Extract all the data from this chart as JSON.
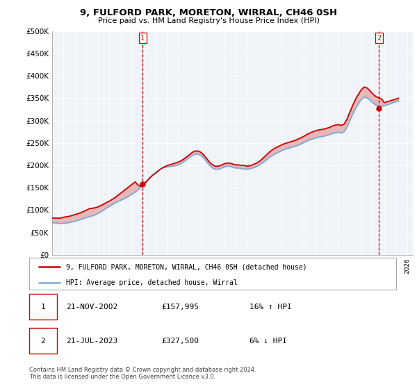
{
  "title": "9, FULFORD PARK, MORETON, WIRRAL, CH46 0SH",
  "subtitle": "Price paid vs. HM Land Registry's House Price Index (HPI)",
  "ylabel_ticks": [
    "£0",
    "£50K",
    "£100K",
    "£150K",
    "£200K",
    "£250K",
    "£300K",
    "£350K",
    "£400K",
    "£450K",
    "£500K"
  ],
  "ylim": [
    0,
    500000
  ],
  "yticks": [
    0,
    50000,
    100000,
    150000,
    200000,
    250000,
    300000,
    350000,
    400000,
    450000,
    500000
  ],
  "xlim_start": 1995.0,
  "xlim_end": 2026.5,
  "point1_x": 2002.896,
  "point1_y": 157995,
  "point2_x": 2023.542,
  "point2_y": 327500,
  "legend_line1": "9, FULFORD PARK, MORETON, WIRRAL, CH46 0SH (detached house)",
  "legend_line2": "HPI: Average price, detached house, Wirral",
  "table_row1": [
    "1",
    "21-NOV-2002",
    "£157,995",
    "16% ↑ HPI"
  ],
  "table_row2": [
    "2",
    "21-JUL-2023",
    "£327,500",
    "6% ↓ HPI"
  ],
  "footer1": "Contains HM Land Registry data © Crown copyright and database right 2024.",
  "footer2": "This data is licensed under the Open Government Licence v3.0.",
  "line_color_red": "#cc0000",
  "line_color_blue": "#7aaddc",
  "bg_color": "#ffffff",
  "plot_bg_color": "#f0f4f8",
  "grid_color": "#ffffff",
  "hpi_years": [
    1995.0,
    1995.25,
    1995.5,
    1995.75,
    1996.0,
    1996.25,
    1996.5,
    1996.75,
    1997.0,
    1997.25,
    1997.5,
    1997.75,
    1998.0,
    1998.25,
    1998.5,
    1998.75,
    1999.0,
    1999.25,
    1999.5,
    1999.75,
    2000.0,
    2000.25,
    2000.5,
    2000.75,
    2001.0,
    2001.25,
    2001.5,
    2001.75,
    2002.0,
    2002.25,
    2002.5,
    2002.75,
    2003.0,
    2003.25,
    2003.5,
    2003.75,
    2004.0,
    2004.25,
    2004.5,
    2004.75,
    2005.0,
    2005.25,
    2005.5,
    2005.75,
    2006.0,
    2006.25,
    2006.5,
    2006.75,
    2007.0,
    2007.25,
    2007.5,
    2007.75,
    2008.0,
    2008.25,
    2008.5,
    2008.75,
    2009.0,
    2009.25,
    2009.5,
    2009.75,
    2010.0,
    2010.25,
    2010.5,
    2010.75,
    2011.0,
    2011.25,
    2011.5,
    2011.75,
    2012.0,
    2012.25,
    2012.5,
    2012.75,
    2013.0,
    2013.25,
    2013.5,
    2013.75,
    2014.0,
    2014.25,
    2014.5,
    2014.75,
    2015.0,
    2015.25,
    2015.5,
    2015.75,
    2016.0,
    2016.25,
    2016.5,
    2016.75,
    2017.0,
    2017.25,
    2017.5,
    2017.75,
    2018.0,
    2018.25,
    2018.5,
    2018.75,
    2019.0,
    2019.25,
    2019.5,
    2019.75,
    2020.0,
    2020.25,
    2020.5,
    2020.75,
    2021.0,
    2021.25,
    2021.5,
    2021.75,
    2022.0,
    2022.25,
    2022.5,
    2022.75,
    2023.0,
    2023.25,
    2023.5,
    2023.75,
    2024.0,
    2024.25,
    2024.5,
    2024.75,
    2025.0,
    2025.25
  ],
  "hpi_values": [
    72000,
    71000,
    70500,
    70000,
    70500,
    71000,
    72000,
    73500,
    75000,
    77000,
    79000,
    81000,
    83000,
    85000,
    87000,
    89000,
    92000,
    96000,
    100000,
    104000,
    108000,
    112000,
    116000,
    119000,
    122000,
    125000,
    128000,
    132000,
    136000,
    140000,
    145000,
    151000,
    158000,
    165000,
    172000,
    178000,
    183000,
    188000,
    192000,
    195000,
    196000,
    197000,
    198000,
    199000,
    201000,
    204000,
    208000,
    213000,
    218000,
    222000,
    225000,
    225000,
    222000,
    216000,
    208000,
    200000,
    194000,
    191000,
    191000,
    193000,
    196000,
    198000,
    198000,
    196000,
    194000,
    194000,
    193000,
    192000,
    191000,
    192000,
    194000,
    196000,
    199000,
    203000,
    208000,
    213000,
    218000,
    222000,
    226000,
    229000,
    232000,
    235000,
    237000,
    239000,
    241000,
    243000,
    245000,
    248000,
    251000,
    254000,
    257000,
    259000,
    261000,
    263000,
    264000,
    265000,
    267000,
    269000,
    271000,
    273000,
    274000,
    272000,
    275000,
    285000,
    300000,
    314000,
    327000,
    338000,
    347000,
    352000,
    351000,
    346000,
    340000,
    335000,
    333000,
    332000,
    333000,
    335000,
    337000,
    340000,
    342000,
    344000
  ],
  "prop_values": [
    82000,
    82000,
    82000,
    82000,
    84000,
    85000,
    86000,
    88000,
    90000,
    92000,
    94000,
    97000,
    100000,
    103000,
    104000,
    105000,
    107000,
    110000,
    113000,
    117000,
    120000,
    124000,
    128000,
    133000,
    138000,
    143000,
    148000,
    153000,
    158000,
    163000,
    156000,
    153000,
    157995,
    164000,
    171000,
    177000,
    182000,
    187000,
    192000,
    196000,
    199000,
    201000,
    203000,
    205000,
    207000,
    210000,
    214000,
    219000,
    224000,
    229000,
    232000,
    232000,
    229000,
    223000,
    215000,
    207000,
    201000,
    198000,
    198000,
    200000,
    203000,
    205000,
    205000,
    203000,
    201000,
    201000,
    200000,
    200000,
    198000,
    199000,
    201000,
    204000,
    207000,
    212000,
    218000,
    224000,
    230000,
    235000,
    239000,
    242000,
    245000,
    248000,
    250000,
    252000,
    254000,
    256000,
    259000,
    262000,
    265000,
    269000,
    272000,
    275000,
    277000,
    279000,
    280000,
    281000,
    283000,
    285000,
    288000,
    290000,
    291000,
    289000,
    292000,
    303000,
    319000,
    334000,
    348000,
    359000,
    369000,
    375000,
    373000,
    367000,
    360000,
    354000,
    351000,
    349000,
    340000,
    342000,
    344000,
    346000,
    348000,
    350000
  ]
}
